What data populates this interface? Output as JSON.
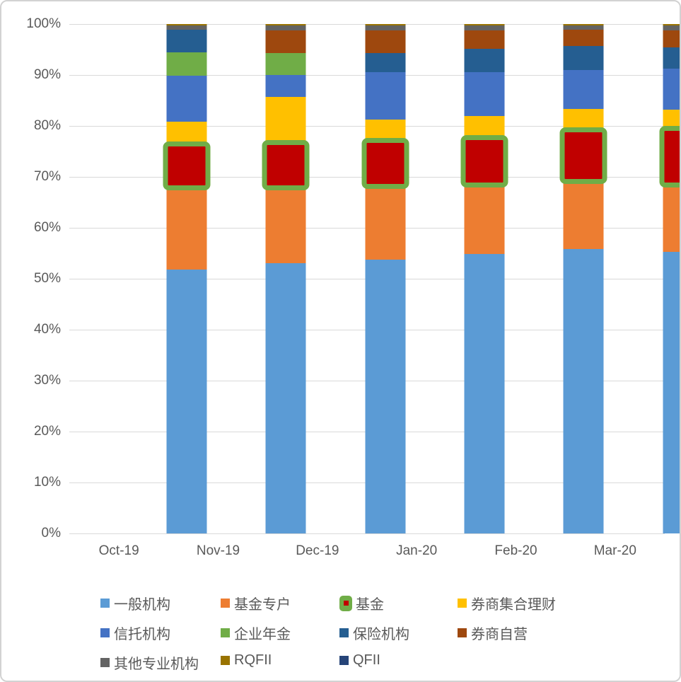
{
  "chart_data": {
    "type": "bar",
    "variant": "stacked-100-percent",
    "title": "",
    "xlabel": "",
    "ylabel": "",
    "categories": [
      "Oct-19",
      "Nov-19",
      "Dec-19",
      "Jan-20",
      "Feb-20",
      "Mar-20"
    ],
    "series": [
      {
        "name": "一般机构",
        "color": "#5b9bd5",
        "highlight": false,
        "values": [
          51.8,
          53.0,
          53.8,
          54.9,
          55.9,
          55.3
        ]
      },
      {
        "name": "基金专户",
        "color": "#ed7d31",
        "highlight": false,
        "values": [
          16.3,
          15.0,
          14.5,
          13.7,
          13.4,
          13.3
        ]
      },
      {
        "name": "基金",
        "color": "#c00000",
        "highlight": true,
        "values": [
          8.2,
          8.5,
          8.7,
          8.9,
          9.7,
          10.7
        ]
      },
      {
        "name": "券商集合理财",
        "color": "#ffc000",
        "highlight": false,
        "values": [
          4.5,
          9.2,
          4.2,
          4.5,
          4.4,
          3.9
        ]
      },
      {
        "name": "信托机构",
        "color": "#4472c4",
        "highlight": false,
        "values": [
          9.1,
          4.3,
          9.3,
          8.6,
          7.6,
          8.1
        ]
      },
      {
        "name": "企业年金",
        "color": "#70ad47",
        "highlight": false,
        "values": [
          4.6,
          4.3,
          0,
          0,
          0,
          0
        ]
      },
      {
        "name": "保险机构",
        "color": "#255e91",
        "highlight": false,
        "values": [
          4.4,
          0,
          3.8,
          4.6,
          4.7,
          4.1
        ]
      },
      {
        "name": "券商自营",
        "color": "#9e480e",
        "highlight": false,
        "values": [
          0,
          4.4,
          4.4,
          3.6,
          3.2,
          3.4
        ]
      },
      {
        "name": "其他专业机构",
        "color": "#636363",
        "highlight": false,
        "values": [
          0.8,
          1.0,
          1.0,
          0.9,
          0.8,
          0.9
        ]
      },
      {
        "name": "RQFII",
        "color": "#997300",
        "highlight": false,
        "values": [
          0.3,
          0.3,
          0.3,
          0.3,
          0.3,
          0.3
        ]
      },
      {
        "name": "QFII",
        "color": "#264478",
        "highlight": false,
        "values": [
          0,
          0,
          0,
          0,
          0,
          0
        ]
      }
    ],
    "highlighted_series": "基金",
    "highlight_border_color": "#70ad47",
    "y_ticks": [
      "100%",
      "90%",
      "80%",
      "70%",
      "60%",
      "50%",
      "40%",
      "30%",
      "20%",
      "10%",
      "0%"
    ],
    "ylim": [
      0,
      100
    ],
    "grid": true,
    "gridline_color": "#d9d9d9",
    "axis_text_color": "#595959",
    "legend_position": "bottom",
    "legend_columns_x": [
      0,
      170,
      338,
      505
    ],
    "legend_rows_y": [
      10,
      52,
      94
    ]
  }
}
